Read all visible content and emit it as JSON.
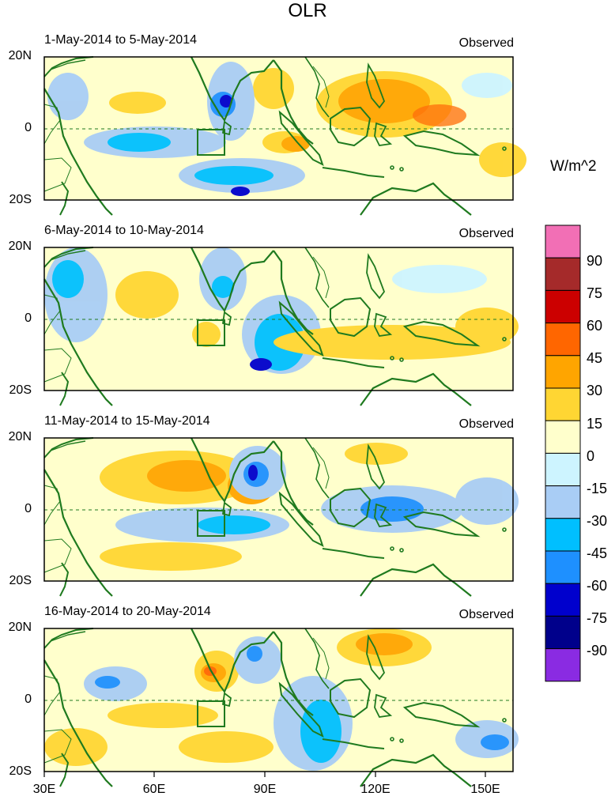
{
  "title": "OLR",
  "units": "W/m^2",
  "colorbar": {
    "labels": [
      "90",
      "75",
      "60",
      "45",
      "30",
      "15",
      "0",
      "-15",
      "-30",
      "-45",
      "-60",
      "-75",
      "-90"
    ],
    "colors": [
      "#f26fb5",
      "#a52a2a",
      "#cc0000",
      "#ff6600",
      "#ffa500",
      "#ffd633",
      "#ffffcc",
      "#cdf4ff",
      "#a9cdf5",
      "#00bfff",
      "#1e90ff",
      "#0000cd",
      "#00008b",
      "#8a2be2"
    ]
  },
  "panels": [
    {
      "date": "1-May-2014 to 5-May-2014",
      "tag": "Observed"
    },
    {
      "date": "6-May-2014 to 10-May-2014",
      "tag": "Observed"
    },
    {
      "date": "11-May-2014 to 15-May-2014",
      "tag": "Observed"
    },
    {
      "date": "16-May-2014 to 20-May-2014",
      "tag": "Observed"
    }
  ],
  "lat_labels": [
    "20N",
    "0",
    "20S"
  ],
  "lon_labels": [
    "30E",
    "60E",
    "90E",
    "120E",
    "150E"
  ]
}
